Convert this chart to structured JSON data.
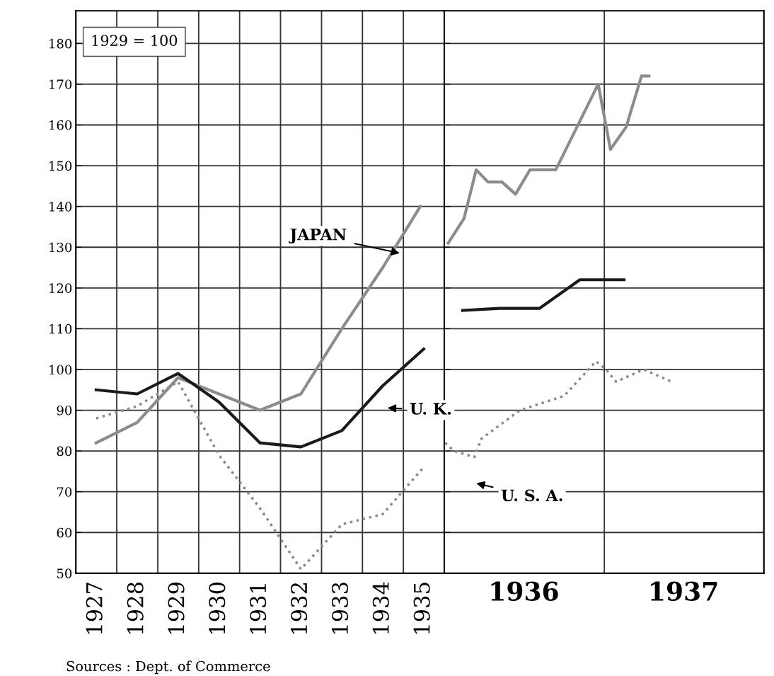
{
  "chart_data": [
    {
      "type": "line",
      "xlim": [
        "1927-01-01",
        "1936-01-01"
      ],
      "ylim": [
        50,
        188
      ],
      "xticks": [
        {
          "value": "1927-01-01",
          "label": null
        },
        {
          "value": "1928-01-01",
          "label": null
        },
        {
          "value": "1929-01-01",
          "label": null
        },
        {
          "value": "1930-01-01",
          "label": null
        },
        {
          "value": "1931-01-01",
          "label": null
        },
        {
          "value": "1932-01-01",
          "label": null
        },
        {
          "value": "1933-01-01",
          "label": null
        },
        {
          "value": "1934-01-01",
          "label": null
        },
        {
          "value": "1935-01-01",
          "label": null
        },
        {
          "value": "1936-01-01",
          "label": null
        },
        {
          "value": "1927-07-01",
          "label": "1927"
        },
        {
          "value": "1928-07-01",
          "label": "1928"
        },
        {
          "value": "1929-07-01",
          "label": "1929"
        },
        {
          "value": "1930-07-01",
          "label": "1930"
        },
        {
          "value": "1931-07-01",
          "label": "1931"
        },
        {
          "value": "1932-07-01",
          "label": "1932"
        },
        {
          "value": "1933-07-01",
          "label": "1933"
        },
        {
          "value": "1934-07-01",
          "label": "1934"
        },
        {
          "value": "1935-07-01",
          "label": "1935"
        }
      ],
      "yticks": [
        50,
        60,
        70,
        80,
        90,
        100,
        110,
        120,
        130,
        140,
        150,
        160,
        170,
        180
      ],
      "grid": true,
      "legend": false,
      "marker": "none",
      "series": [
        {
          "color": "#8c8c8c",
          "line_style": "solid",
          "x": [
            "1927-07-01",
            "1928-07-01",
            "1929-07-01",
            "1930-07-01",
            "1931-07-01",
            "1932-07-01",
            "1933-07-01",
            "1934-07-01",
            "1935-06-01"
          ],
          "values": [
            82,
            87,
            98,
            94,
            90,
            94,
            110,
            125,
            140
          ]
        },
        {
          "color": "#1a1a1a",
          "line_style": "solid",
          "x": [
            "1927-07-01",
            "1928-07-01",
            "1929-07-01",
            "1930-07-01",
            "1931-07-01",
            "1932-07-01",
            "1933-07-01",
            "1934-07-01",
            "1935-07-01"
          ],
          "values": [
            95,
            94,
            99,
            92,
            82,
            81,
            85,
            96,
            105
          ]
        },
        {
          "color": "#8a8a8a",
          "line_style": "dotted",
          "x": [
            "1927-07-01",
            "1928-07-01",
            "1929-07-01",
            "1930-07-01",
            "1931-07-01",
            "1932-07-01",
            "1933-07-01",
            "1934-07-01",
            "1935-07-01"
          ],
          "values": [
            88,
            91,
            97,
            79,
            66,
            51,
            62,
            64.5,
            76
          ]
        }
      ],
      "annotations": [
        "1929 = 100",
        "JAPAN",
        "U. K.",
        "Sources : Dept. of Commerce"
      ]
    },
    {
      "type": "line",
      "xlim": [
        "1936-01-01",
        "1938-01-01"
      ],
      "ylim": [
        50,
        188
      ],
      "xticks": [
        {
          "value": "1936-01-01",
          "label": null
        },
        {
          "value": "1937-01-01",
          "label": null
        },
        {
          "value": "1938-01-01",
          "label": null
        },
        {
          "value": "1936-07-01",
          "label": "1936"
        },
        {
          "value": "1937-07-01",
          "label": "1937"
        }
      ],
      "yticks": [
        50,
        60,
        70,
        80,
        90,
        100,
        110,
        120,
        130,
        140,
        150,
        160,
        170,
        180
      ],
      "tick_labels": "x",
      "grid": true,
      "legend": false,
      "marker": "none",
      "series": [
        {
          "color": "#8c8c8c",
          "line_style": "solid",
          "x": [
            "1936-01-10",
            "1936-02-15",
            "1936-03-14",
            "1936-04-10",
            "1936-05-12",
            "1936-06-12",
            "1936-07-15",
            "1936-09-12",
            "1936-12-18",
            "1937-01-15",
            "1937-02-20",
            "1937-03-27",
            "1937-04-13"
          ],
          "values": [
            131,
            137,
            149,
            146,
            146,
            143,
            149,
            149,
            170,
            154,
            159.5,
            172,
            172
          ]
        },
        {
          "color": "#1a1a1a",
          "line_style": "solid",
          "x": [
            "1936-02-12",
            "1936-05-06",
            "1936-08-06",
            "1936-11-06",
            "1937-02-15"
          ],
          "values": [
            114.5,
            115,
            115,
            122,
            122
          ]
        },
        {
          "color": "#8a8a8a",
          "line_style": "dotted",
          "x": [
            "1936-01-03",
            "1936-01-23",
            "1936-03-10",
            "1936-03-26",
            "1936-06-22",
            "1936-10-01",
            "1936-12-13",
            "1937-01-05",
            "1937-01-28",
            "1937-04-01",
            "1937-06-04"
          ],
          "values": [
            82,
            80,
            78.5,
            83,
            90,
            93.5,
            102,
            100,
            97,
            100,
            97
          ]
        }
      ],
      "annotations": [
        "U. S. A."
      ]
    }
  ]
}
